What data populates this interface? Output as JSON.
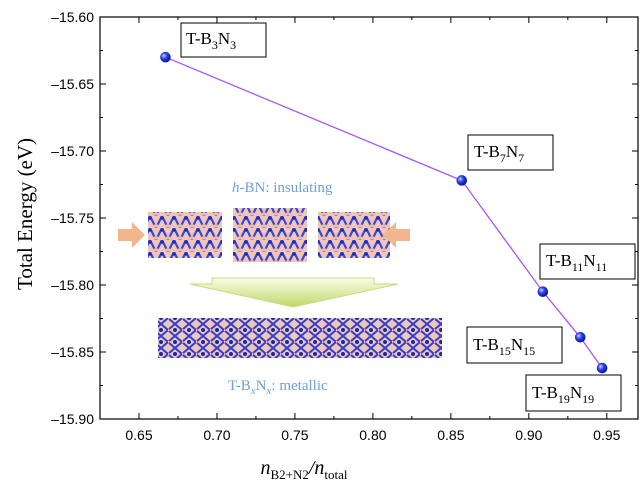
{
  "chart_data": {
    "type": "line",
    "title": "",
    "ylabel": "Total Energy (eV)",
    "xlabel_parts": [
      "n",
      "B2+N2",
      "/n",
      "total"
    ],
    "xlim": [
      0.625,
      0.97
    ],
    "ylim": [
      -15.9,
      -15.6
    ],
    "xticks": [
      "0.65",
      "0.70",
      "0.75",
      "0.80",
      "0.85",
      "0.90",
      "0.95"
    ],
    "yticks": [
      "-15.60",
      "-15.65",
      "-15.70",
      "-15.75",
      "-15.80",
      "-15.85",
      "-15.90"
    ],
    "x": [
      0.667,
      0.857,
      0.909,
      0.933,
      0.947
    ],
    "y": [
      -15.63,
      -15.722,
      -15.805,
      -15.839,
      -15.862
    ],
    "line_color": "#a855f7",
    "marker_color": "#1a2fd6",
    "annotations": [
      {
        "prefix": "T-B",
        "sub1": "3",
        "mid": "N",
        "sub2": "3"
      },
      {
        "prefix": "T-B",
        "sub1": "7",
        "mid": "N",
        "sub2": "7"
      },
      {
        "prefix": "T-B",
        "sub1": "11",
        "mid": "N",
        "sub2": "11"
      },
      {
        "prefix": "T-B",
        "sub1": "15",
        "mid": "N",
        "sub2": "15"
      },
      {
        "prefix": "T-B",
        "sub1": "19",
        "mid": "N",
        "sub2": "19"
      }
    ],
    "inset": {
      "top_italic": "h",
      "top_rest": "-BN: insulating",
      "bottom_prefix": "T-B",
      "bottom_sub1": "x",
      "bottom_mid": "N",
      "bottom_sub2": "x",
      "bottom_rest": ": metallic"
    }
  }
}
